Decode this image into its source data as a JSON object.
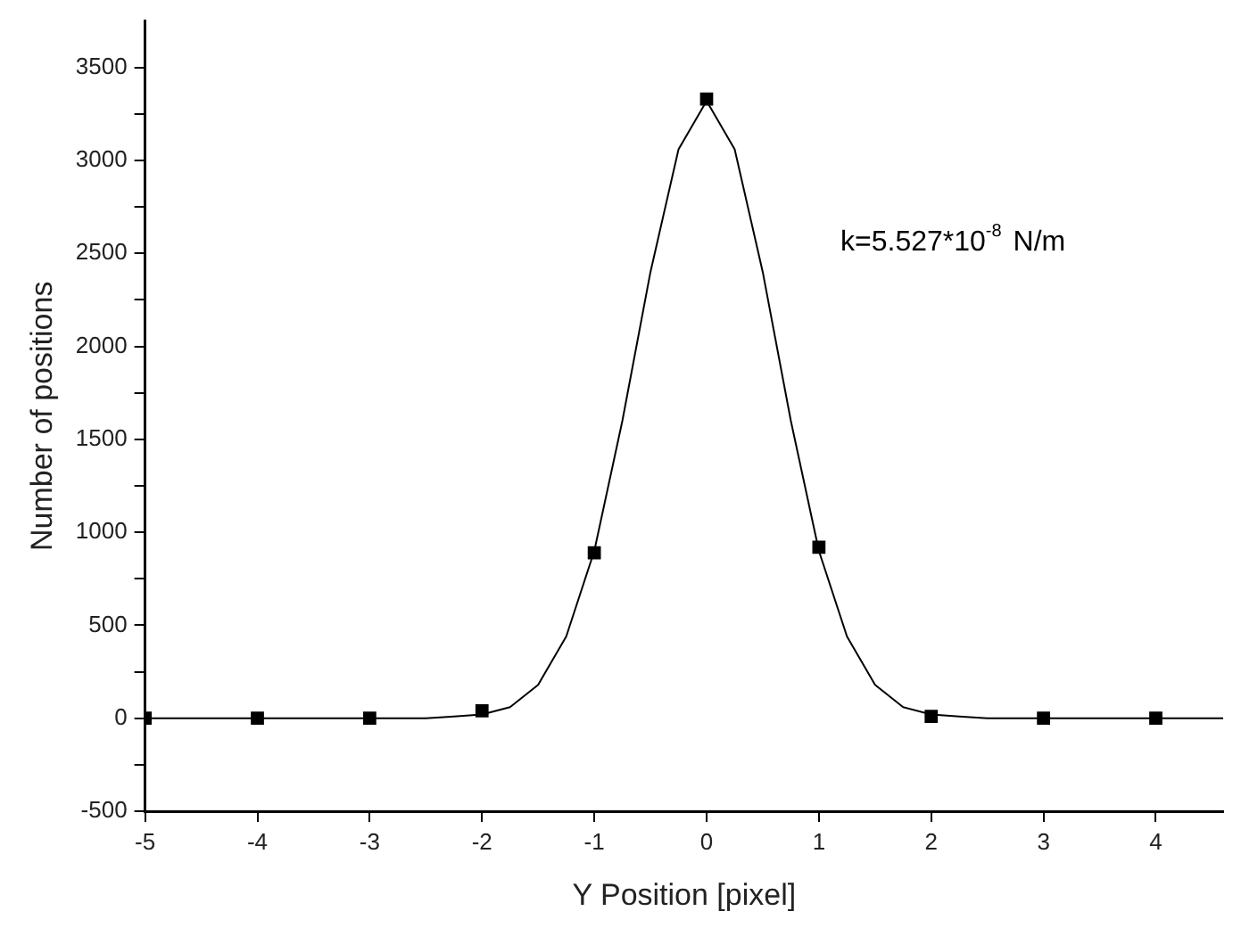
{
  "chart_data": {
    "type": "scatter",
    "xlabel": "Y Position [pixel]",
    "ylabel": "Number of positions",
    "annotations": [
      "k=5.527*10$^{-8}$ N/m"
    ],
    "xlim": [
      -5,
      4.6
    ],
    "xticks": [
      -5,
      -4,
      -3,
      -2,
      -1,
      0,
      1,
      2,
      3,
      4
    ],
    "ylim": [
      -500,
      3750
    ],
    "yticks": [
      -500,
      {
        "value": -250,
        "label": null
      },
      0,
      {
        "value": 250,
        "label": null
      },
      500,
      {
        "value": 750,
        "label": null
      },
      1000,
      {
        "value": 1250,
        "label": null
      },
      1500,
      {
        "value": 1750,
        "label": null
      },
      2000,
      {
        "value": 2250,
        "label": null
      },
      2500,
      {
        "value": 2750,
        "label": null
      },
      3000,
      {
        "value": 3250,
        "label": null
      },
      3500
    ],
    "grid": false,
    "legend": false,
    "marker": "square",
    "series": [
      {
        "type": "scatter",
        "color": "#000000",
        "x": [
          -5,
          -4,
          -3,
          -2,
          -1,
          0,
          1,
          2,
          3,
          4
        ],
        "values": [
          0,
          0,
          0,
          40,
          890,
          3330,
          920,
          10,
          0,
          0
        ]
      },
      {
        "type": "line",
        "color": "#000000",
        "marker": "none",
        "x": [
          -5,
          -2.5,
          -2.25,
          -2,
          -1.75,
          -1.5,
          -1.25,
          -1,
          -0.75,
          -0.5,
          -0.25,
          0,
          0.25,
          0.5,
          0.75,
          1,
          1.25,
          1.5,
          1.75,
          2,
          2.25,
          2.5,
          4.6
        ],
        "values": [
          0,
          0,
          10,
          20,
          60,
          180,
          440,
          900,
          1600,
          2400,
          3060,
          3320,
          3060,
          2400,
          1600,
          900,
          440,
          180,
          60,
          20,
          10,
          0,
          0
        ]
      }
    ]
  }
}
